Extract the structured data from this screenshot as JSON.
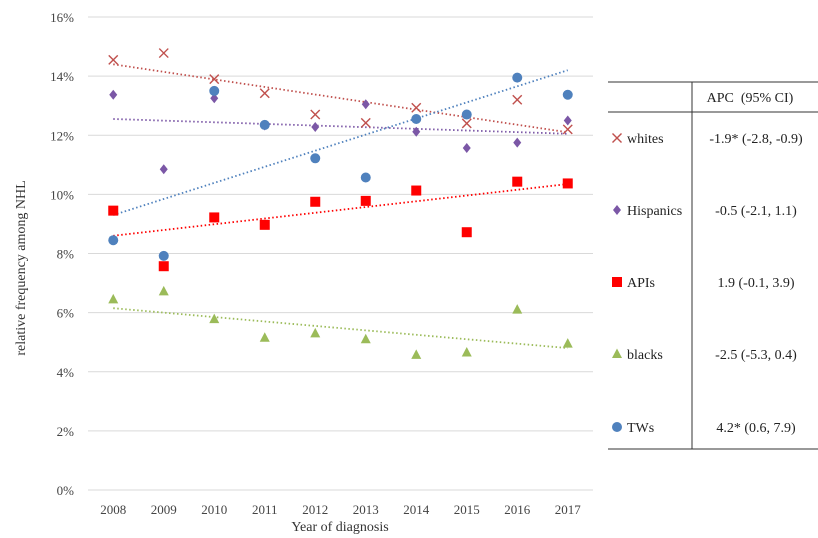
{
  "chart_data": {
    "type": "scatter",
    "xlabel": "Year of diagnosis",
    "ylabel": "relative frequency among NHL",
    "categories": [
      "2008",
      "2009",
      "2010",
      "2011",
      "2012",
      "2013",
      "2014",
      "2015",
      "2016",
      "2017"
    ],
    "yticks": [
      "0%",
      "2%",
      "4%",
      "6%",
      "8%",
      "10%",
      "12%",
      "14%",
      "16%"
    ],
    "ylim": [
      0,
      16
    ],
    "grid": true,
    "series": [
      {
        "name": "whites",
        "marker": "x",
        "color": "#c0504d",
        "values": [
          14.55,
          14.78,
          13.9,
          13.42,
          12.7,
          12.42,
          12.93,
          12.4,
          13.2,
          12.2
        ],
        "trend": [
          14.4,
          12.1
        ]
      },
      {
        "name": "Hispanics",
        "marker": "diamond",
        "color": "#7b57a6",
        "values": [
          13.37,
          10.85,
          13.25,
          12.33,
          12.28,
          13.05,
          12.12,
          11.57,
          11.75,
          12.5
        ],
        "trend": [
          12.55,
          12.05
        ]
      },
      {
        "name": "APIs",
        "marker": "square",
        "color": "#ff0000",
        "values": [
          9.45,
          7.57,
          9.22,
          8.97,
          9.75,
          9.78,
          10.13,
          8.72,
          10.43,
          10.37
        ],
        "trend": [
          8.6,
          10.35
        ]
      },
      {
        "name": "blacks",
        "marker": "triangle",
        "color": "#9bbb59",
        "values": [
          6.45,
          6.72,
          5.78,
          5.15,
          5.3,
          5.1,
          4.57,
          4.65,
          6.1,
          4.95
        ],
        "trend": [
          6.15,
          4.8
        ]
      },
      {
        "name": "TWs",
        "marker": "circle",
        "color": "#4f81bd",
        "values": [
          8.45,
          7.92,
          13.5,
          12.35,
          11.22,
          10.57,
          12.55,
          12.7,
          13.95,
          13.37
        ],
        "trend": [
          9.3,
          14.2
        ]
      }
    ],
    "table": {
      "header": "APC  (95% CI)",
      "rows": [
        {
          "label": "whites",
          "apc": "-1.9* (-2.8, -0.9)"
        },
        {
          "label": "Hispanics",
          "apc": "-0.5 (-2.1, 1.1)"
        },
        {
          "label": "APIs",
          "apc": "1.9 (-0.1, 3.9)"
        },
        {
          "label": "blacks",
          "apc": "-2.5 (-5.3, 0.4)"
        },
        {
          "label": "TWs",
          "apc": "4.2* (0.6, 7.9)"
        }
      ]
    }
  }
}
